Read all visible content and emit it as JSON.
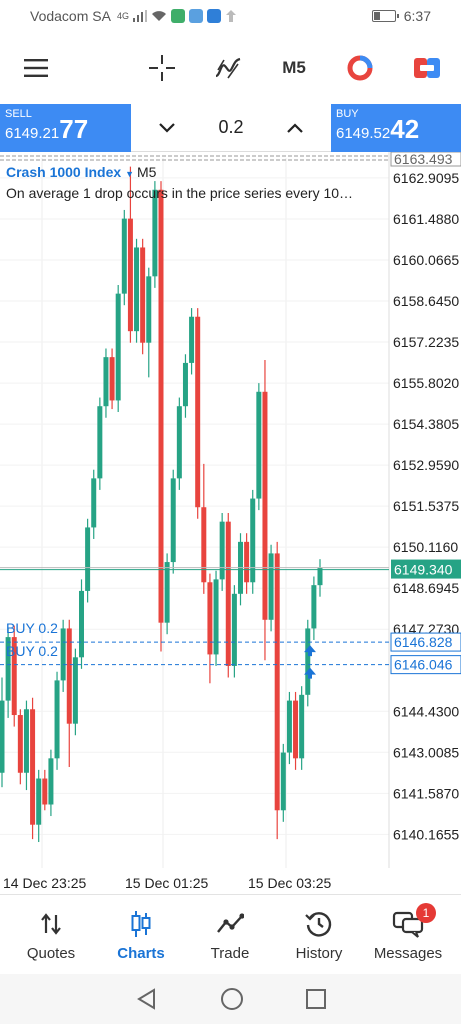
{
  "status_bar": {
    "carrier": "Vodacom SA",
    "network": "4G",
    "time": "6:37"
  },
  "toolbar": {
    "timeframe": "M5"
  },
  "trade": {
    "sell_label": "SELL",
    "sell_price_prefix": "6149.21",
    "sell_price_big": "77",
    "buy_label": "BUY",
    "buy_price_prefix": "6149.52",
    "buy_price_big": "42",
    "lot": "0.2"
  },
  "chart": {
    "symbol": "Crash 1000 Index",
    "timeframe": "M5",
    "description": "On average 1 drop occurs in the price series every 10…",
    "orders": [
      {
        "label": "BUY 0.2",
        "price": 6146.828
      },
      {
        "label": "BUY 0.2",
        "price": 6146.046
      }
    ]
  },
  "chart_data": {
    "type": "candlestick",
    "y_tick_labels": [
      "6162.9095",
      "6161.4880",
      "6160.0665",
      "6158.6450",
      "6157.2235",
      "6155.8020",
      "6154.3805",
      "6152.9590",
      "6151.5375",
      "6150.1160",
      "6148.6945",
      "6147.2730",
      "6144.4300",
      "6143.0085",
      "6141.5870",
      "6140.1655"
    ],
    "y_ticks": [
      6162.9095,
      6161.488,
      6160.0665,
      6158.645,
      6157.2235,
      6155.802,
      6154.3805,
      6152.959,
      6151.5375,
      6150.116,
      6148.6945,
      6147.273,
      6144.43,
      6143.0085,
      6141.587,
      6140.1655
    ],
    "x_tick_labels": [
      "14 Dec 23:25",
      "15 Dec 01:25",
      "15 Dec 03:25"
    ],
    "ylim": [
      6139.0,
      6163.6
    ],
    "current_price": "6149.340",
    "current_value": 6149.34,
    "top_price": "6163.493",
    "top_value": 6163.493,
    "colors": {
      "up": "#26a385",
      "down": "#e8443e",
      "current": "#26a385",
      "order": "#1a74d6"
    },
    "candles": [
      {
        "o": 6142.3,
        "c": 6144.8,
        "h": 6145.6,
        "l": 6141.8
      },
      {
        "o": 6144.8,
        "c": 6147.0,
        "h": 6147.3,
        "l": 6144.2
      },
      {
        "o": 6147.0,
        "c": 6144.3,
        "h": 6147.4,
        "l": 6143.9
      },
      {
        "o": 6144.3,
        "c": 6142.3,
        "h": 6144.5,
        "l": 6141.9
      },
      {
        "o": 6142.3,
        "c": 6144.5,
        "h": 6144.8,
        "l": 6141.7
      },
      {
        "o": 6144.5,
        "c": 6140.5,
        "h": 6144.9,
        "l": 6140.0
      },
      {
        "o": 6140.5,
        "c": 6142.1,
        "h": 6142.4,
        "l": 6139.9
      },
      {
        "o": 6142.1,
        "c": 6141.2,
        "h": 6142.4,
        "l": 6141.0
      },
      {
        "o": 6141.2,
        "c": 6142.8,
        "h": 6143.1,
        "l": 6140.8
      },
      {
        "o": 6142.8,
        "c": 6145.5,
        "h": 6145.8,
        "l": 6142.4
      },
      {
        "o": 6145.5,
        "c": 6147.3,
        "h": 6147.6,
        "l": 6145.1
      },
      {
        "o": 6147.3,
        "c": 6144.0,
        "h": 6147.6,
        "l": 6142.5
      },
      {
        "o": 6144.0,
        "c": 6146.3,
        "h": 6146.6,
        "l": 6143.6
      },
      {
        "o": 6146.3,
        "c": 6148.6,
        "h": 6149.0,
        "l": 6145.9
      },
      {
        "o": 6148.6,
        "c": 6150.8,
        "h": 6151.1,
        "l": 6148.2
      },
      {
        "o": 6150.8,
        "c": 6152.5,
        "h": 6152.8,
        "l": 6150.4
      },
      {
        "o": 6152.5,
        "c": 6155.0,
        "h": 6155.3,
        "l": 6152.1
      },
      {
        "o": 6155.0,
        "c": 6156.7,
        "h": 6157.0,
        "l": 6154.6
      },
      {
        "o": 6156.7,
        "c": 6155.2,
        "h": 6157.0,
        "l": 6154.9
      },
      {
        "o": 6155.2,
        "c": 6158.9,
        "h": 6159.2,
        "l": 6154.8
      },
      {
        "o": 6158.9,
        "c": 6161.5,
        "h": 6161.8,
        "l": 6158.5
      },
      {
        "o": 6161.5,
        "c": 6157.6,
        "h": 6163.3,
        "l": 6157.2
      },
      {
        "o": 6157.6,
        "c": 6160.5,
        "h": 6160.8,
        "l": 6157.2
      },
      {
        "o": 6160.5,
        "c": 6157.2,
        "h": 6160.8,
        "l": 6156.8
      },
      {
        "o": 6157.2,
        "c": 6159.5,
        "h": 6159.8,
        "l": 6156.0
      },
      {
        "o": 6159.5,
        "c": 6162.5,
        "h": 6162.8,
        "l": 6159.1
      },
      {
        "o": 6162.5,
        "c": 6147.5,
        "h": 6162.8,
        "l": 6146.5
      },
      {
        "o": 6147.5,
        "c": 6149.6,
        "h": 6149.9,
        "l": 6147.1
      },
      {
        "o": 6149.6,
        "c": 6152.5,
        "h": 6152.8,
        "l": 6149.2
      },
      {
        "o": 6152.5,
        "c": 6155.0,
        "h": 6155.3,
        "l": 6152.1
      },
      {
        "o": 6155.0,
        "c": 6156.5,
        "h": 6156.8,
        "l": 6154.6
      },
      {
        "o": 6156.5,
        "c": 6158.1,
        "h": 6158.4,
        "l": 6156.1
      },
      {
        "o": 6158.1,
        "c": 6151.5,
        "h": 6158.4,
        "l": 6151.1
      },
      {
        "o": 6151.5,
        "c": 6148.9,
        "h": 6153.0,
        "l": 6148.5
      },
      {
        "o": 6148.9,
        "c": 6146.4,
        "h": 6149.2,
        "l": 6145.4
      },
      {
        "o": 6146.4,
        "c": 6149.0,
        "h": 6149.3,
        "l": 6146.0
      },
      {
        "o": 6149.0,
        "c": 6151.0,
        "h": 6151.3,
        "l": 6148.6
      },
      {
        "o": 6151.0,
        "c": 6146.0,
        "h": 6151.3,
        "l": 6145.6
      },
      {
        "o": 6146.0,
        "c": 6148.5,
        "h": 6148.8,
        "l": 6145.6
      },
      {
        "o": 6148.5,
        "c": 6150.3,
        "h": 6150.6,
        "l": 6148.1
      },
      {
        "o": 6150.3,
        "c": 6148.9,
        "h": 6150.6,
        "l": 6148.5
      },
      {
        "o": 6148.9,
        "c": 6151.8,
        "h": 6152.1,
        "l": 6148.5
      },
      {
        "o": 6151.8,
        "c": 6155.5,
        "h": 6155.8,
        "l": 6151.4
      },
      {
        "o": 6155.5,
        "c": 6147.6,
        "h": 6156.6,
        "l": 6146.2
      },
      {
        "o": 6147.6,
        "c": 6149.9,
        "h": 6150.2,
        "l": 6147.2
      },
      {
        "o": 6149.9,
        "c": 6141.0,
        "h": 6150.3,
        "l": 6140.0
      },
      {
        "o": 6141.0,
        "c": 6143.0,
        "h": 6143.3,
        "l": 6140.6
      },
      {
        "o": 6143.0,
        "c": 6144.8,
        "h": 6145.1,
        "l": 6142.6
      },
      {
        "o": 6144.8,
        "c": 6142.8,
        "h": 6145.1,
        "l": 6142.4
      },
      {
        "o": 6142.8,
        "c": 6145.0,
        "h": 6145.3,
        "l": 6142.4
      },
      {
        "o": 6145.0,
        "c": 6147.3,
        "h": 6147.6,
        "l": 6144.6
      },
      {
        "o": 6147.3,
        "c": 6148.8,
        "h": 6149.1,
        "l": 6146.9
      },
      {
        "o": 6148.8,
        "c": 6149.4,
        "h": 6149.7,
        "l": 6148.4
      }
    ]
  },
  "tabs": [
    {
      "label": "Quotes",
      "icon": "quotes-arrows-icon"
    },
    {
      "label": "Charts",
      "icon": "charts-candles-icon",
      "active": true
    },
    {
      "label": "Trade",
      "icon": "trade-line-icon"
    },
    {
      "label": "History",
      "icon": "history-clock-icon"
    },
    {
      "label": "Messages",
      "icon": "messages-chat-icon",
      "badge": "1"
    }
  ]
}
